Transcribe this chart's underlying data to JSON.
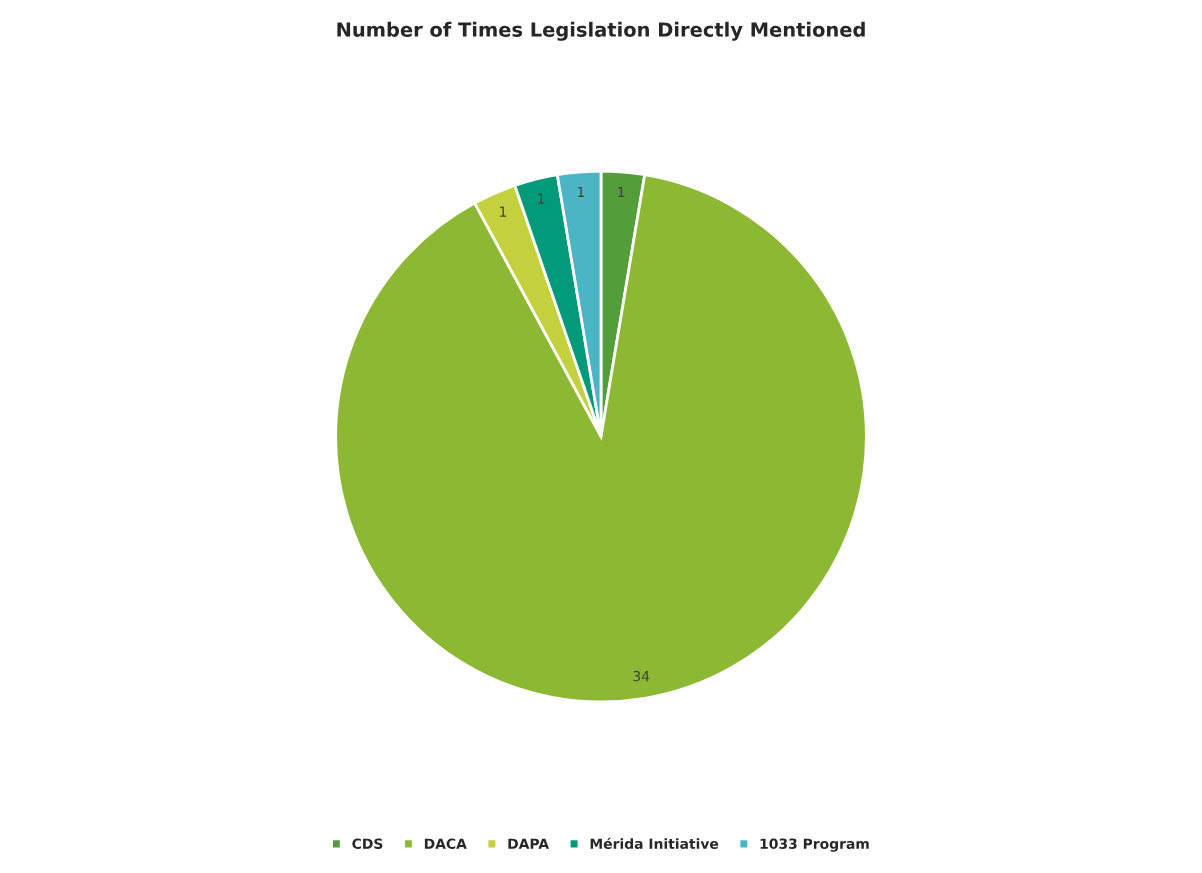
{
  "chart_data": {
    "type": "pie",
    "title": "Number of Times Legislation Directly Mentioned",
    "categories": [
      "CDS",
      "DACA",
      "DAPA",
      "Mérida Initiative",
      "1033 Program"
    ],
    "values": [
      1,
      34,
      1,
      1,
      1
    ],
    "colors": [
      "#539e3a",
      "#8cb833",
      "#c3d23c",
      "#009a7a",
      "#4bb5c6"
    ],
    "data_labels": true,
    "legend": "bottom"
  }
}
